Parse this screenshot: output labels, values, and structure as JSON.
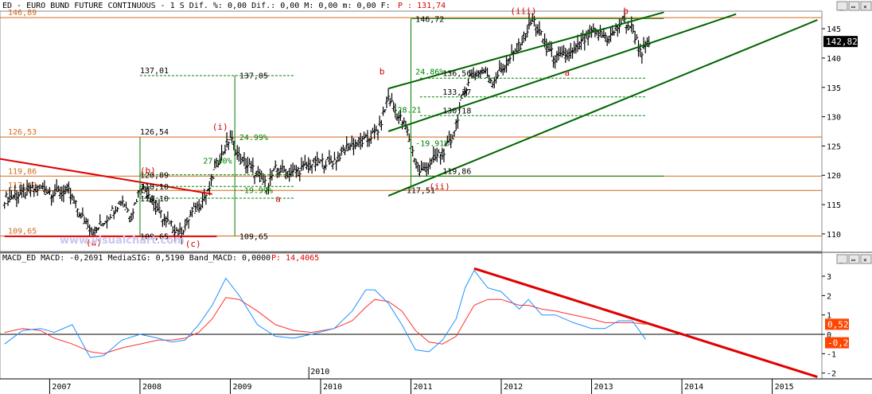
{
  "colors": {
    "bar": "#000000",
    "hline": "#d2691e",
    "fib": "#008000",
    "channel": "#006400",
    "redline": "#e00000",
    "label_red": "#d00000",
    "macd": "#1e90ff",
    "signal": "#ff3030",
    "header_red": "#e00000",
    "grid": "#999999",
    "last_price_bg": "#000000",
    "macd_box": "#ff4500",
    "watermark": "#c8c8f0"
  },
  "main_header": {
    "prefix": "ED - EURO BUND FUTURE CONTINUOUS -  1 S Dif. %: 0,00 Dif.: 0,00 M: 0,00 m: 0,00 F:",
    "price": "P : 131,74"
  },
  "macd_header": {
    "prefix": "MACD_ED MACD: -0,2691 MediaSIG: 0,5190 Band_MACD: 0,0000",
    "price": "P: 14,4065"
  },
  "watermark": "www.visualchart.com",
  "window_buttons": {
    "minimize": "_",
    "restore": "▭",
    "close": "✕"
  },
  "chart_data": [
    {
      "type": "candlestick",
      "title": "ED - EURO BUND FUTURE CONTINUOUS",
      "timeframe": "1 S",
      "last_price": "142,82",
      "ylim": [
        107,
        148
      ],
      "yticks": [
        "110",
        "115",
        "120",
        "125",
        "130",
        "135",
        "140",
        "145"
      ],
      "x_label_top": "2010",
      "years": [
        "2007",
        "2008",
        "2009",
        "2010",
        "2011",
        "2012",
        "2013",
        "2014",
        "2015"
      ],
      "series_points": [
        [
          2006.5,
          116
        ],
        [
          2006.7,
          117
        ],
        [
          2006.9,
          118
        ],
        [
          2007.05,
          117
        ],
        [
          2007.2,
          117.5
        ],
        [
          2007.35,
          113
        ],
        [
          2007.5,
          110.5
        ],
        [
          2007.65,
          113
        ],
        [
          2007.8,
          116
        ],
        [
          2007.9,
          113
        ],
        [
          2008.0,
          118
        ],
        [
          2008.1,
          117
        ],
        [
          2008.2,
          114
        ],
        [
          2008.3,
          112
        ],
        [
          2008.45,
          110
        ],
        [
          2008.55,
          113
        ],
        [
          2008.75,
          117
        ],
        [
          2008.85,
          122
        ],
        [
          2009.0,
          126.5
        ],
        [
          2009.1,
          123
        ],
        [
          2009.25,
          121
        ],
        [
          2009.4,
          118.2
        ],
        [
          2009.5,
          121
        ],
        [
          2009.7,
          120.5
        ],
        [
          2009.9,
          122
        ],
        [
          2010.15,
          122.5
        ],
        [
          2010.3,
          125
        ],
        [
          2010.5,
          126
        ],
        [
          2010.65,
          128
        ],
        [
          2010.75,
          133.5
        ],
        [
          2010.83,
          131
        ],
        [
          2010.95,
          128
        ],
        [
          2011.02,
          124
        ],
        [
          2011.1,
          120.5
        ],
        [
          2011.2,
          122
        ],
        [
          2011.35,
          124
        ],
        [
          2011.45,
          126
        ],
        [
          2011.55,
          132
        ],
        [
          2011.65,
          137
        ],
        [
          2011.8,
          138
        ],
        [
          2011.9,
          136
        ],
        [
          2012.1,
          140
        ],
        [
          2012.2,
          142
        ],
        [
          2012.35,
          146.7
        ],
        [
          2012.5,
          142
        ],
        [
          2012.6,
          140
        ],
        [
          2012.8,
          141
        ],
        [
          2013.0,
          144.5
        ],
        [
          2013.2,
          143.5
        ],
        [
          2013.35,
          146.5
        ],
        [
          2013.45,
          145
        ],
        [
          2013.55,
          141
        ],
        [
          2013.65,
          142.8
        ]
      ],
      "horizontal_levels": [
        {
          "label": "146,89",
          "value": 146.89
        },
        {
          "label": "126,53",
          "value": 126.53
        },
        {
          "label": "119,86",
          "value": 119.86
        },
        {
          "label": "117,42",
          "value": 117.42
        },
        {
          "label": "109,65",
          "value": 109.65
        }
      ],
      "fib_levels": [
        {
          "label": "137,01",
          "value": 137.01
        },
        {
          "label": "137,05",
          "value": 137.05
        },
        {
          "label": "126,54",
          "value": 126.54
        },
        {
          "label": "120,09",
          "value": 120.09
        },
        {
          "label": "118,10",
          "value": 118.1
        },
        {
          "label": "116,10",
          "value": 116.1
        },
        {
          "label": "109,65",
          "value": 109.65
        },
        {
          "label": "146,72",
          "value": 146.72
        },
        {
          "label": "136,56",
          "value": 136.56
        },
        {
          "label": "133,37",
          "value": 133.37
        },
        {
          "label": "130,18",
          "value": 130.18
        },
        {
          "label": "119,86",
          "value": 119.86
        },
        {
          "label": "117,51",
          "value": 117.51
        }
      ],
      "percent_labels": [
        "24.99%",
        "27.40%",
        "-19.99%",
        "24.86%",
        "28.21",
        "-19.91%"
      ],
      "wave_labels": [
        "(a)",
        "(b)",
        "(c)",
        "(i)",
        "(ii)",
        "(iii)",
        "b",
        "a",
        "b",
        "a"
      ]
    },
    {
      "type": "line",
      "title": "MACD_ED",
      "ylim": [
        -2.3,
        3.7
      ],
      "yticks": [
        "-2",
        "-1",
        "0",
        "1",
        "2",
        "3"
      ],
      "values": {
        "macd": "-0,27",
        "signal": "0,52"
      },
      "series": [
        {
          "name": "MACD",
          "points": [
            [
              2006.5,
              -0.5
            ],
            [
              2006.7,
              0.2
            ],
            [
              2006.9,
              0.3
            ],
            [
              2007.05,
              0.1
            ],
            [
              2007.25,
              0.5
            ],
            [
              2007.45,
              -1.2
            ],
            [
              2007.6,
              -1.1
            ],
            [
              2007.8,
              -0.3
            ],
            [
              2008.0,
              0.0
            ],
            [
              2008.2,
              -0.2
            ],
            [
              2008.35,
              -0.4
            ],
            [
              2008.5,
              -0.3
            ],
            [
              2008.65,
              0.5
            ],
            [
              2008.8,
              1.5
            ],
            [
              2008.95,
              2.9
            ],
            [
              2009.1,
              2.0
            ],
            [
              2009.3,
              0.5
            ],
            [
              2009.5,
              -0.1
            ],
            [
              2009.7,
              -0.2
            ],
            [
              2009.9,
              0.0
            ],
            [
              2010.15,
              0.3
            ],
            [
              2010.35,
              1.2
            ],
            [
              2010.5,
              2.3
            ],
            [
              2010.6,
              2.3
            ],
            [
              2010.75,
              1.6
            ],
            [
              2010.9,
              0.5
            ],
            [
              2011.05,
              -0.8
            ],
            [
              2011.2,
              -0.9
            ],
            [
              2011.35,
              -0.3
            ],
            [
              2011.5,
              0.8
            ],
            [
              2011.6,
              2.4
            ],
            [
              2011.7,
              3.3
            ],
            [
              2011.85,
              2.4
            ],
            [
              2012.0,
              2.2
            ],
            [
              2012.2,
              1.3
            ],
            [
              2012.3,
              1.8
            ],
            [
              2012.45,
              1.0
            ],
            [
              2012.6,
              1.0
            ],
            [
              2012.8,
              0.6
            ],
            [
              2013.0,
              0.3
            ],
            [
              2013.15,
              0.3
            ],
            [
              2013.3,
              0.7
            ],
            [
              2013.45,
              0.7
            ],
            [
              2013.6,
              -0.27
            ]
          ]
        },
        {
          "name": "Signal",
          "points": [
            [
              2006.5,
              0.1
            ],
            [
              2006.7,
              0.3
            ],
            [
              2006.9,
              0.2
            ],
            [
              2007.05,
              -0.2
            ],
            [
              2007.25,
              -0.5
            ],
            [
              2007.45,
              -0.9
            ],
            [
              2007.6,
              -1.0
            ],
            [
              2007.8,
              -0.7
            ],
            [
              2008.0,
              -0.5
            ],
            [
              2008.2,
              -0.3
            ],
            [
              2008.35,
              -0.3
            ],
            [
              2008.5,
              -0.2
            ],
            [
              2008.65,
              0.1
            ],
            [
              2008.8,
              0.8
            ],
            [
              2008.95,
              1.9
            ],
            [
              2009.1,
              1.8
            ],
            [
              2009.3,
              1.2
            ],
            [
              2009.5,
              0.5
            ],
            [
              2009.7,
              0.2
            ],
            [
              2009.9,
              0.1
            ],
            [
              2010.15,
              0.3
            ],
            [
              2010.35,
              0.7
            ],
            [
              2010.5,
              1.4
            ],
            [
              2010.6,
              1.8
            ],
            [
              2010.75,
              1.7
            ],
            [
              2010.9,
              1.2
            ],
            [
              2011.05,
              0.2
            ],
            [
              2011.2,
              -0.4
            ],
            [
              2011.35,
              -0.5
            ],
            [
              2011.5,
              -0.1
            ],
            [
              2011.6,
              0.7
            ],
            [
              2011.7,
              1.5
            ],
            [
              2011.85,
              1.8
            ],
            [
              2012.0,
              1.8
            ],
            [
              2012.2,
              1.5
            ],
            [
              2012.3,
              1.5
            ],
            [
              2012.45,
              1.3
            ],
            [
              2012.6,
              1.2
            ],
            [
              2012.8,
              1.0
            ],
            [
              2013.0,
              0.8
            ],
            [
              2013.15,
              0.6
            ],
            [
              2013.3,
              0.6
            ],
            [
              2013.45,
              0.6
            ],
            [
              2013.6,
              0.52
            ]
          ]
        }
      ]
    }
  ]
}
